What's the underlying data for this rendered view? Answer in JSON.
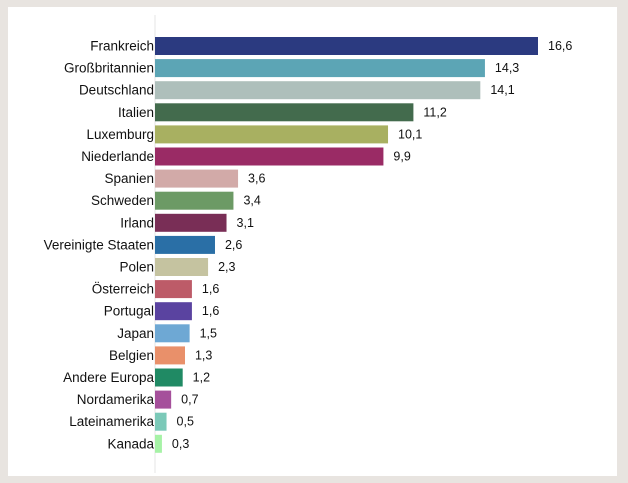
{
  "chart_data": {
    "type": "bar",
    "orientation": "horizontal",
    "title": "",
    "xlabel": "",
    "ylabel": "",
    "xlim": [
      0,
      16.6
    ],
    "grid": false,
    "legend": "none",
    "categories": [
      "Frankreich",
      "Großbritannien",
      "Deutschland",
      "Italien",
      "Luxemburg",
      "Niederlande",
      "Spanien",
      "Schweden",
      "Irland",
      "Vereinigte Staaten",
      "Polen",
      "Österreich",
      "Portugal",
      "Japan",
      "Belgien",
      "Andere Europa",
      "Nordamerika",
      "Lateinamerika",
      "Kanada"
    ],
    "values": [
      16.6,
      14.3,
      14.1,
      11.2,
      10.1,
      9.9,
      3.6,
      3.4,
      3.1,
      2.6,
      2.3,
      1.6,
      1.6,
      1.5,
      1.3,
      1.2,
      0.7,
      0.5,
      0.3
    ],
    "value_labels": [
      "16,6",
      "14,3",
      "14,1",
      "11,2",
      "10,1",
      "9,9",
      "3,6",
      "3,4",
      "3,1",
      "2,6",
      "2,3",
      "1,6",
      "1,6",
      "1,5",
      "1,3",
      "1,2",
      "0,7",
      "0,5",
      "0,3"
    ],
    "colors": [
      "#2b3a80",
      "#5ca5b5",
      "#aebfbb",
      "#436b4d",
      "#a8b061",
      "#9a2b65",
      "#d2aaa8",
      "#6c9a65",
      "#792e56",
      "#2a6fa6",
      "#c5c3a0",
      "#bd5b68",
      "#5a43a0",
      "#6ea8d4",
      "#e9906a",
      "#208a64",
      "#a5509b",
      "#7bc9b8",
      "#a6f2a6"
    ]
  }
}
